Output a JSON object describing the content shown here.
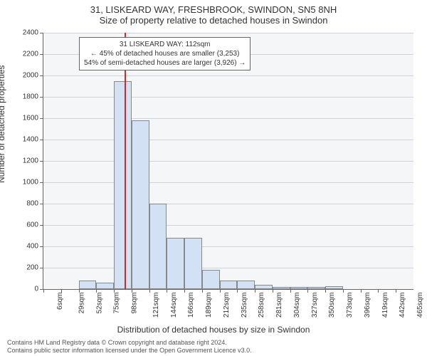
{
  "title_main": "31, LISKEARD WAY, FRESHBROOK, SWINDON, SN5 8NH",
  "title_sub": "Size of property relative to detached houses in Swindon",
  "yaxis_label": "Number of detached properties",
  "xaxis_label": "Distribution of detached houses by size in Swindon",
  "footer_line1": "Contains HM Land Registry data © Crown copyright and database right 2024.",
  "footer_line2": "Contains public sector information licensed under the Open Government Licence v3.0.",
  "colors": {
    "plot_bg": "#f5f6f7",
    "grid": "#cfd3d8",
    "axis": "#666666",
    "bar_fill": "#d3e1f5",
    "bar_edge": "#888888",
    "refline": "#d62728",
    "text": "#333333"
  },
  "chart": {
    "type": "histogram",
    "ymin": 0,
    "ymax": 2400,
    "ytick_step": 200,
    "x_categories": [
      "6sqm",
      "29sqm",
      "52sqm",
      "75sqm",
      "98sqm",
      "121sqm",
      "144sqm",
      "166sqm",
      "189sqm",
      "212sqm",
      "235sqm",
      "258sqm",
      "281sqm",
      "304sqm",
      "327sqm",
      "350sqm",
      "373sqm",
      "396sqm",
      "419sqm",
      "442sqm",
      "465sqm"
    ],
    "bin_width_sqm": 23,
    "bar_values": [
      0,
      0,
      80,
      60,
      1950,
      1580,
      800,
      480,
      480,
      180,
      80,
      80,
      40,
      20,
      20,
      20,
      30,
      0,
      0,
      0,
      0
    ],
    "refline_at_sqm": 112,
    "annotation": {
      "line1": "31 LISKEARD WAY: 112sqm",
      "line2": "← 45% of detached houses are smaller (3,253)",
      "line3": "54% of semi-detached houses are larger (3,926) →"
    }
  }
}
